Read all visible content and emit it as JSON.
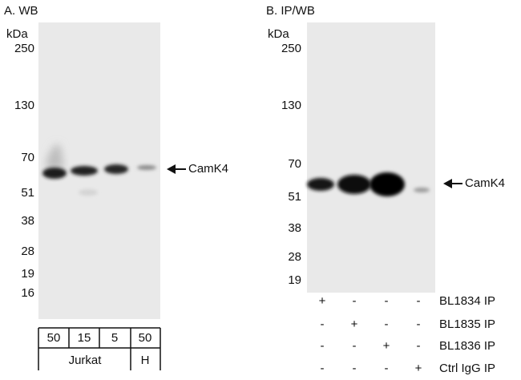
{
  "panels": [
    {
      "title": "A. WB",
      "unit": "kDa",
      "markers": [
        "250",
        "130",
        "70",
        "51",
        "38",
        "28",
        "19",
        "16"
      ],
      "target": "CamK4",
      "lanes": [
        "50",
        "15",
        "5",
        "50"
      ],
      "groups": [
        "Jurkat",
        "H"
      ]
    },
    {
      "title": "B. IP/WB",
      "unit": "kDa",
      "markers": [
        "250",
        "130",
        "70",
        "51",
        "38",
        "28",
        "19"
      ],
      "target": "CamK4",
      "rows": [
        {
          "label": "BL1834 IP",
          "signs": [
            "+",
            "-",
            "-",
            "-"
          ]
        },
        {
          "label": "BL1835 IP",
          "signs": [
            "-",
            "+",
            "-",
            "-"
          ]
        },
        {
          "label": "BL1836 IP",
          "signs": [
            "-",
            "-",
            "+",
            "-"
          ]
        },
        {
          "label": "Ctrl IgG IP",
          "signs": [
            "-",
            "-",
            "-",
            "+"
          ]
        }
      ]
    }
  ]
}
